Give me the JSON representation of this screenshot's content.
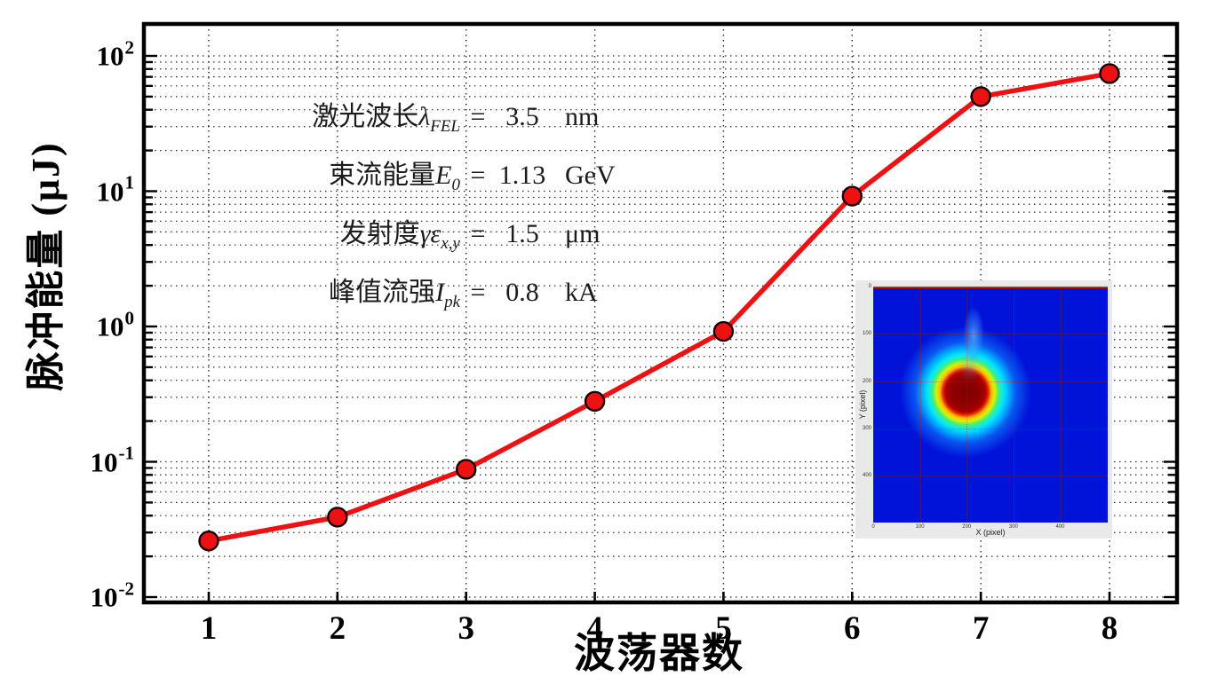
{
  "chart_data": {
    "type": "line",
    "title": "",
    "xlabel": "波荡器数",
    "ylabel": "脉冲能量 (μJ)",
    "yscale": "log",
    "x": [
      1,
      2,
      3,
      4,
      5,
      6,
      7,
      8
    ],
    "y": [
      0.026,
      0.039,
      0.088,
      0.28,
      0.92,
      9.2,
      50,
      74
    ],
    "xlim": [
      0.5,
      8.52
    ],
    "ylim": [
      0.0091,
      172
    ],
    "x_ticks": [
      "1",
      "2",
      "3",
      "4",
      "5",
      "6",
      "7",
      "8"
    ],
    "y_tick_labels": [
      {
        "base": "10",
        "exp": "2"
      },
      {
        "base": "10",
        "exp": "1"
      },
      {
        "base": "10",
        "exp": "0"
      },
      {
        "base": "10",
        "exp": "-1"
      },
      {
        "base": "10",
        "exp": "-2"
      }
    ],
    "grid": "dotted, major and minor log decades",
    "legend_position": "none",
    "colors": {
      "line": "#ee1114",
      "marker_fill": "#ee1114",
      "marker_edge": "#140202",
      "grid": "#2b2b2b",
      "spine": "#000000"
    }
  },
  "annotations": [
    {
      "label": "激光波长",
      "symbol": "λ",
      "subscript": "FEL",
      "equals": "=",
      "value": "3.5",
      "unit": "nm"
    },
    {
      "label": "束流能量",
      "symbol": "E",
      "subscript": "0",
      "equals": "=",
      "value": "1.13",
      "unit": "GeV"
    },
    {
      "label": "发射度",
      "symbol": "γε",
      "subscript": "x,y",
      "equals": "=",
      "value": "1.5",
      "unit": "μm"
    },
    {
      "label": "峰值流强",
      "symbol": "I",
      "subscript": "pk",
      "equals": "=",
      "value": "0.8",
      "unit": "kA"
    }
  ],
  "inset": {
    "xlabel": "X (pixel)",
    "ylabel": "Y (pixel)",
    "x_tick_labels": [
      "0",
      "100",
      "200",
      "300",
      "400"
    ],
    "y_tick_labels": [
      "0",
      "100",
      "200",
      "300",
      "400"
    ],
    "colors": {
      "panel_background": "#e9e9e9",
      "image_background": "#0113d9",
      "spot_core": "#7c0000",
      "spot_ring": "#ffb400",
      "spot_halo": "#00e6ff"
    }
  }
}
